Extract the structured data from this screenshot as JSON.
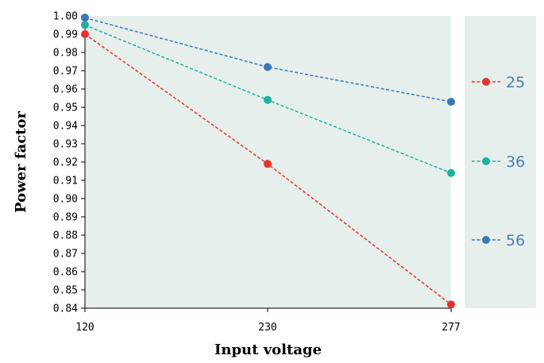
{
  "chart_data": {
    "type": "line",
    "title": "",
    "xlabel": "Input voltage",
    "ylabel": "Power factor",
    "categories": [
      "120",
      "230",
      "277"
    ],
    "x_ticks": [
      "120",
      "230",
      "277"
    ],
    "ylim": [
      0.84,
      1.0
    ],
    "y_ticks": [
      "1.00",
      "0.99",
      "0.98",
      "0.97",
      "0.96",
      "0.95",
      "0.94",
      "0.93",
      "0.92",
      "0.91",
      "0.90",
      "0.89",
      "0.88",
      "0.87",
      "0.86",
      "0.85",
      "0.84"
    ],
    "grid": false,
    "legend_position": "right",
    "series": [
      {
        "name": "25",
        "values": [
          0.99,
          0.919,
          0.842
        ],
        "color": "#e8312d"
      },
      {
        "name": "36",
        "values": [
          0.995,
          0.954,
          0.914
        ],
        "color": "#1fb0a0"
      },
      {
        "name": "56",
        "values": [
          0.999,
          0.972,
          0.953
        ],
        "color": "#3a78b5"
      }
    ],
    "colors": {
      "plot_background": "#e6efec",
      "legend_background": "#e6efec"
    }
  }
}
